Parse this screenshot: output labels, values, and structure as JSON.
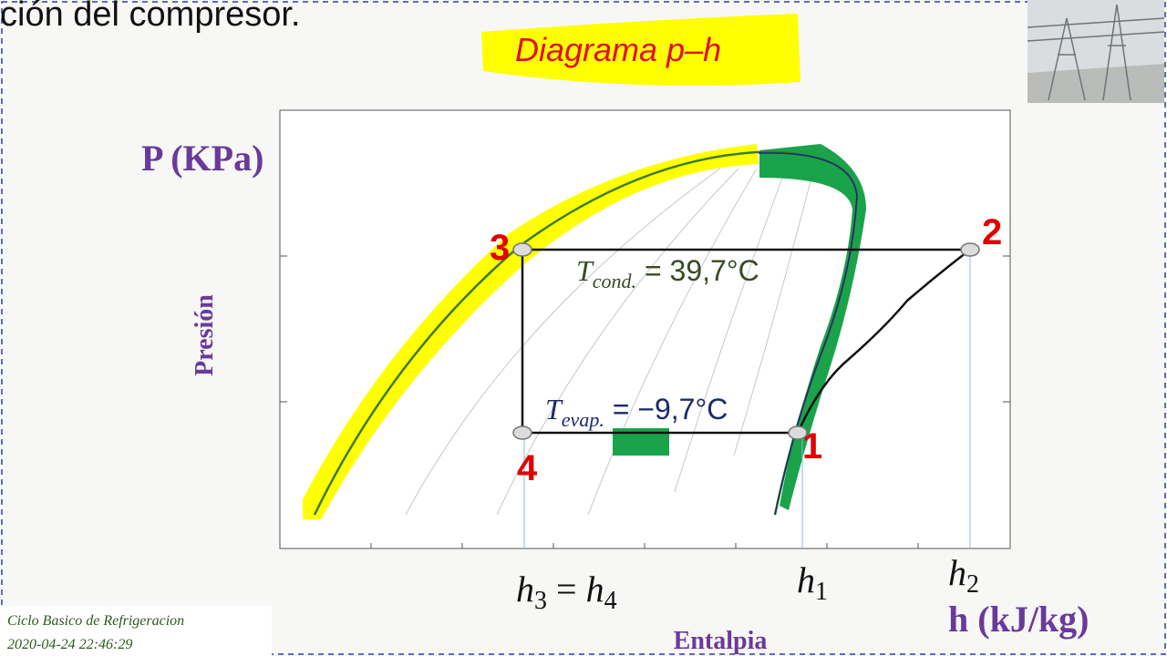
{
  "slide": {
    "heading": "ción del compresor.",
    "title": "Diagrama p–h",
    "y_axis_unit": "P (KPa)",
    "y_axis_label": "Presión",
    "x_axis_label": "Entalpia",
    "x_axis_unit": "h (kJ/kg)",
    "points": [
      "1",
      "2",
      "3",
      "4"
    ],
    "t_cond": {
      "symbol": "T",
      "subscript": "cond.",
      "text": " = 39,7°C"
    },
    "t_evap": {
      "symbol": "T",
      "subscript": "evap.",
      "text": " = −9,7°C"
    },
    "h34": {
      "h3": "h",
      "s3": "3",
      "eq": " = ",
      "h4": "h",
      "s4": "4"
    },
    "h1": {
      "h": "h",
      "s": "1"
    },
    "h2": {
      "h": "h",
      "s": "2"
    },
    "footer": {
      "name": "Ciclo Basico de Refrigeracion",
      "timestamp": "2020-04-24 22:46:29"
    }
  }
}
